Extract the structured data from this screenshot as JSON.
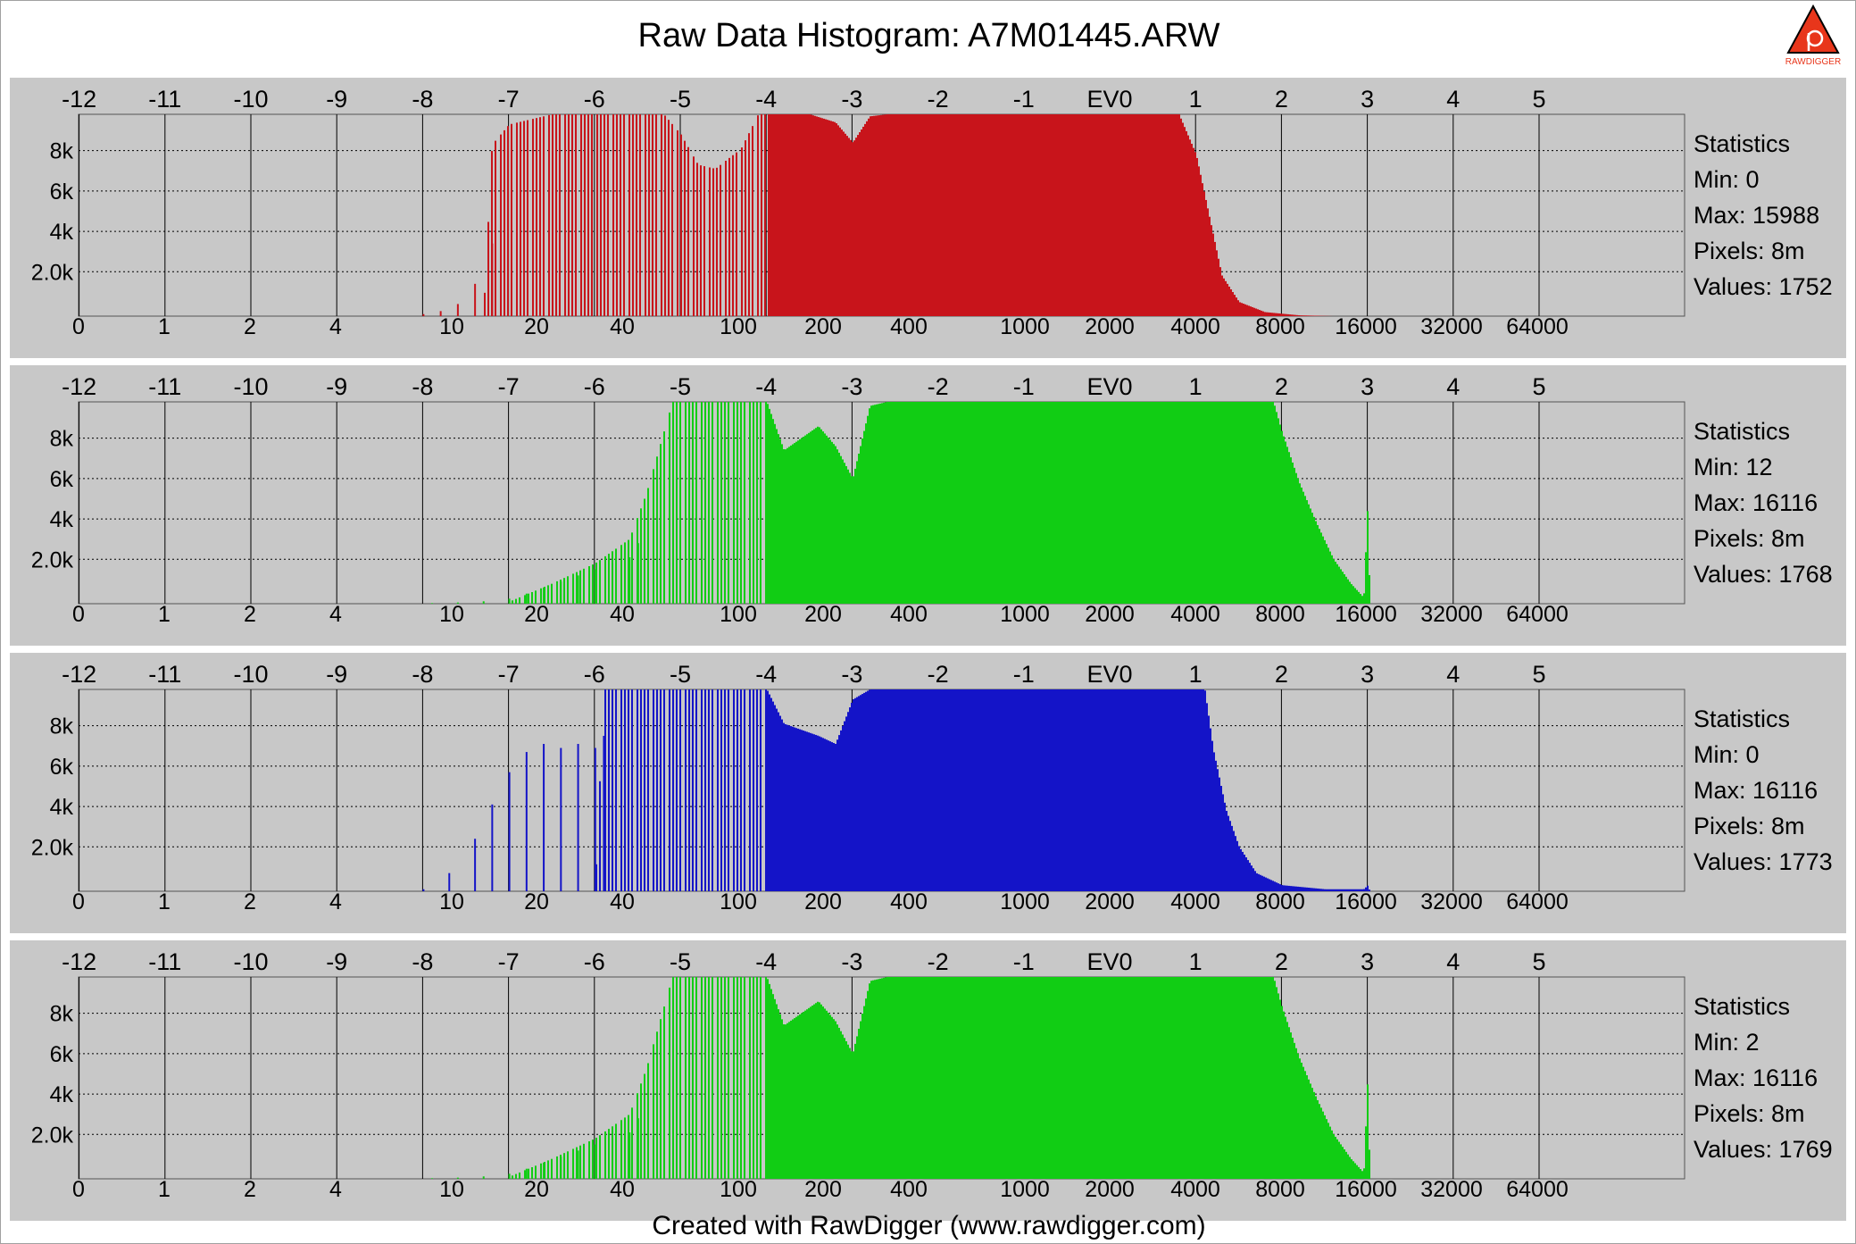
{
  "title": "Raw Data Histogram: A7M01445.ARW",
  "footer": "Created with RawDigger (www.rawdigger.com)",
  "logo": {
    "text": "RAWDIGGER",
    "icon": "rawdigger-logo",
    "colors": {
      "triangle": "#e8361b",
      "outline": "#000000"
    }
  },
  "colors": {
    "panel_bg": "#c8c8c8",
    "plot_bg": "#c8c8c8",
    "grid": "#000000",
    "red": "#c8141b",
    "green": "#11cd14",
    "blue": "#1414c8"
  },
  "chart_data": [
    {
      "type": "bar",
      "channel": "R",
      "color": "#c8141b",
      "ev_ticks": [
        "-12",
        "-11",
        "-10",
        "-9",
        "-8",
        "-7",
        "-6",
        "-5",
        "-4",
        "-3",
        "-2",
        "-1",
        "EV0",
        "1",
        "2",
        "3",
        "4",
        "5"
      ],
      "value_ticks": [
        "0",
        "1",
        "2",
        "4",
        "10",
        "20",
        "40",
        "100",
        "200",
        "400",
        "1000",
        "2000",
        "4000",
        "8000",
        "16000",
        "32000",
        "64000"
      ],
      "y_ticks": [
        "8k",
        "6k",
        "4k",
        "2.0k"
      ],
      "ylim": [
        0,
        10000
      ],
      "grid": true,
      "profile": [
        [
          -7.3,
          50
        ],
        [
          -7.2,
          8500
        ],
        [
          -7.0,
          9500
        ],
        [
          -6.5,
          10000
        ],
        [
          -5.2,
          10000
        ],
        [
          -5.0,
          9000
        ],
        [
          -4.8,
          7500
        ],
        [
          -4.6,
          7300
        ],
        [
          -4.3,
          8300
        ],
        [
          -4.1,
          10000
        ],
        [
          -3.5,
          10000
        ],
        [
          -3.2,
          9600
        ],
        [
          -3.0,
          8600
        ],
        [
          -2.8,
          9900
        ],
        [
          -2.6,
          10000
        ],
        [
          0.8,
          10000
        ],
        [
          1.0,
          8000
        ],
        [
          1.15,
          5000
        ],
        [
          1.3,
          2000
        ],
        [
          1.5,
          700
        ],
        [
          1.8,
          200
        ],
        [
          2.2,
          40
        ],
        [
          2.6,
          0
        ]
      ],
      "sparse_spikes": [
        [
          -8.0,
          100
        ],
        [
          -7.8,
          250
        ],
        [
          -7.6,
          600
        ],
        [
          -7.4,
          1600
        ],
        [
          -7.2,
          3600
        ]
      ],
      "statistics": {
        "header": "Statistics",
        "min": "Min: 0",
        "max": "Max: 15988",
        "pixels": "Pixels: 8m",
        "values": "Values: 1752"
      }
    },
    {
      "type": "bar",
      "channel": "G",
      "color": "#11cd14",
      "ev_ticks": [
        "-12",
        "-11",
        "-10",
        "-9",
        "-8",
        "-7",
        "-6",
        "-5",
        "-4",
        "-3",
        "-2",
        "-1",
        "EV0",
        "1",
        "2",
        "3",
        "4",
        "5"
      ],
      "value_ticks": [
        "0",
        "1",
        "2",
        "4",
        "10",
        "20",
        "40",
        "100",
        "200",
        "400",
        "1000",
        "2000",
        "4000",
        "8000",
        "16000",
        "32000",
        "64000"
      ],
      "y_ticks": [
        "8k",
        "6k",
        "4k",
        "2.0k"
      ],
      "ylim": [
        0,
        10000
      ],
      "grid": true,
      "profile": [
        [
          -7.0,
          100
        ],
        [
          -6.5,
          1000
        ],
        [
          -6.0,
          2000
        ],
        [
          -5.6,
          3200
        ],
        [
          -5.4,
          5500
        ],
        [
          -5.2,
          8500
        ],
        [
          -5.1,
          10000
        ],
        [
          -4.0,
          10000
        ],
        [
          -3.8,
          7600
        ],
        [
          -3.6,
          8200
        ],
        [
          -3.4,
          8800
        ],
        [
          -3.2,
          7800
        ],
        [
          -3.0,
          6200
        ],
        [
          -2.8,
          9800
        ],
        [
          -2.6,
          10000
        ],
        [
          1.9,
          10000
        ],
        [
          2.0,
          8500
        ],
        [
          2.2,
          6000
        ],
        [
          2.4,
          4000
        ],
        [
          2.6,
          2200
        ],
        [
          2.8,
          1000
        ],
        [
          2.95,
          300
        ],
        [
          3.0,
          5200
        ],
        [
          3.02,
          0
        ]
      ],
      "sparse_spikes": [
        [
          -7.9,
          30
        ],
        [
          -7.6,
          60
        ],
        [
          -7.3,
          120
        ],
        [
          -7.0,
          250
        ],
        [
          -6.8,
          500
        ],
        [
          -6.6,
          800
        ],
        [
          -6.4,
          1100
        ],
        [
          -6.2,
          1400
        ],
        [
          -6.0,
          1700
        ],
        [
          -5.8,
          2000
        ],
        [
          -5.6,
          2300
        ],
        [
          -5.5,
          3000
        ]
      ],
      "statistics": {
        "header": "Statistics",
        "min": "Min: 12",
        "max": "Max: 16116",
        "pixels": "Pixels: 8m",
        "values": "Values: 1768"
      }
    },
    {
      "type": "bar",
      "channel": "B",
      "color": "#1414c8",
      "ev_ticks": [
        "-12",
        "-11",
        "-10",
        "-9",
        "-8",
        "-7",
        "-6",
        "-5",
        "-4",
        "-3",
        "-2",
        "-1",
        "EV0",
        "1",
        "2",
        "3",
        "4",
        "5"
      ],
      "value_ticks": [
        "0",
        "1",
        "2",
        "4",
        "10",
        "20",
        "40",
        "100",
        "200",
        "400",
        "1000",
        "2000",
        "4000",
        "8000",
        "16000",
        "32000",
        "64000"
      ],
      "y_ticks": [
        "8k",
        "6k",
        "4k",
        "2.0k"
      ],
      "ylim": [
        0,
        10000
      ],
      "grid": true,
      "profile": [
        [
          -6.0,
          100
        ],
        [
          -5.9,
          10000
        ],
        [
          -4.0,
          10000
        ],
        [
          -3.8,
          8300
        ],
        [
          -3.4,
          7700
        ],
        [
          -3.2,
          7300
        ],
        [
          -3.0,
          9500
        ],
        [
          -2.8,
          10000
        ],
        [
          1.1,
          10000
        ],
        [
          1.2,
          7000
        ],
        [
          1.35,
          4000
        ],
        [
          1.5,
          2200
        ],
        [
          1.7,
          900
        ],
        [
          2.0,
          300
        ],
        [
          2.5,
          100
        ],
        [
          2.95,
          100
        ],
        [
          3.0,
          300
        ],
        [
          3.02,
          0
        ]
      ],
      "sparse_spikes": [
        [
          -8.0,
          100
        ],
        [
          -7.7,
          900
        ],
        [
          -7.4,
          2600
        ],
        [
          -7.2,
          4300
        ],
        [
          -7.0,
          5900
        ],
        [
          -6.8,
          6900
        ],
        [
          -6.6,
          7300
        ],
        [
          -6.4,
          7100
        ],
        [
          -6.2,
          7300
        ],
        [
          -6.0,
          7100
        ],
        [
          -5.9,
          7700
        ]
      ],
      "statistics": {
        "header": "Statistics",
        "min": "Min: 0",
        "max": "Max: 16116",
        "pixels": "Pixels: 8m",
        "values": "Values: 1773"
      }
    },
    {
      "type": "bar",
      "channel": "G2",
      "color": "#11cd14",
      "ev_ticks": [
        "-12",
        "-11",
        "-10",
        "-9",
        "-8",
        "-7",
        "-6",
        "-5",
        "-4",
        "-3",
        "-2",
        "-1",
        "EV0",
        "1",
        "2",
        "3",
        "4",
        "5"
      ],
      "value_ticks": [
        "0",
        "1",
        "2",
        "4",
        "10",
        "20",
        "40",
        "100",
        "200",
        "400",
        "1000",
        "2000",
        "4000",
        "8000",
        "16000",
        "32000",
        "64000"
      ],
      "y_ticks": [
        "8k",
        "6k",
        "4k",
        "2.0k"
      ],
      "ylim": [
        0,
        10000
      ],
      "grid": true,
      "profile": [
        [
          -7.0,
          100
        ],
        [
          -6.5,
          1000
        ],
        [
          -6.0,
          2000
        ],
        [
          -5.6,
          3200
        ],
        [
          -5.4,
          5500
        ],
        [
          -5.2,
          8500
        ],
        [
          -5.1,
          10000
        ],
        [
          -4.0,
          10000
        ],
        [
          -3.8,
          7600
        ],
        [
          -3.6,
          8200
        ],
        [
          -3.4,
          8800
        ],
        [
          -3.2,
          7800
        ],
        [
          -3.0,
          6200
        ],
        [
          -2.8,
          9800
        ],
        [
          -2.6,
          10000
        ],
        [
          1.9,
          10000
        ],
        [
          2.0,
          8500
        ],
        [
          2.2,
          6000
        ],
        [
          2.4,
          4000
        ],
        [
          2.6,
          2200
        ],
        [
          2.8,
          1000
        ],
        [
          2.95,
          300
        ],
        [
          3.0,
          5300
        ],
        [
          3.02,
          0
        ]
      ],
      "sparse_spikes": [
        [
          -7.9,
          30
        ],
        [
          -7.6,
          60
        ],
        [
          -7.3,
          120
        ],
        [
          -7.0,
          250
        ],
        [
          -6.8,
          500
        ],
        [
          -6.6,
          800
        ],
        [
          -6.4,
          1100
        ],
        [
          -6.2,
          1400
        ],
        [
          -6.0,
          1700
        ],
        [
          -5.8,
          2000
        ],
        [
          -5.6,
          2300
        ],
        [
          -5.5,
          3000
        ]
      ],
      "statistics": {
        "header": "Statistics",
        "min": "Min: 2",
        "max": "Max: 16116",
        "pixels": "Pixels: 8m",
        "values": "Values: 1769"
      }
    }
  ]
}
